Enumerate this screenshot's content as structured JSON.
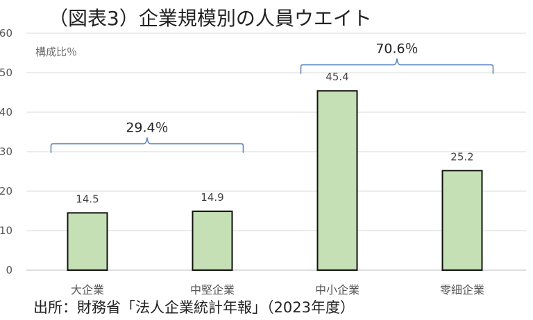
{
  "title": "（図表3）企業規模別の人員ウエイト",
  "chart_data": {
    "type": "bar",
    "title": "（図表3）企業規模別の人員ウエイト",
    "ylabel": "構成比％",
    "xlabel": "",
    "ylim": [
      0,
      60
    ],
    "yticks": [
      "0",
      "10",
      "20",
      "30",
      "40",
      "50",
      "60"
    ],
    "categories": [
      "大企業",
      "中堅企業",
      "中小企業",
      "零細企業"
    ],
    "values": [
      14.5,
      14.9,
      45.4,
      25.2
    ],
    "data_labels": [
      "14.5",
      "14.9",
      "45.4",
      "25.2"
    ],
    "grid": true,
    "bar_color": "#c5e0b4",
    "bar_edge_color": "#111111",
    "annotations": [
      {
        "label": "29.4％",
        "from_index": 0,
        "to_index": 1,
        "level": 32
      },
      {
        "label": "70.6％",
        "from_index": 2,
        "to_index": 3,
        "level": 52
      }
    ],
    "bracket_color": "#5b86c5"
  },
  "source": "出所：財務省「法人企業統計年報」（2023年度）"
}
